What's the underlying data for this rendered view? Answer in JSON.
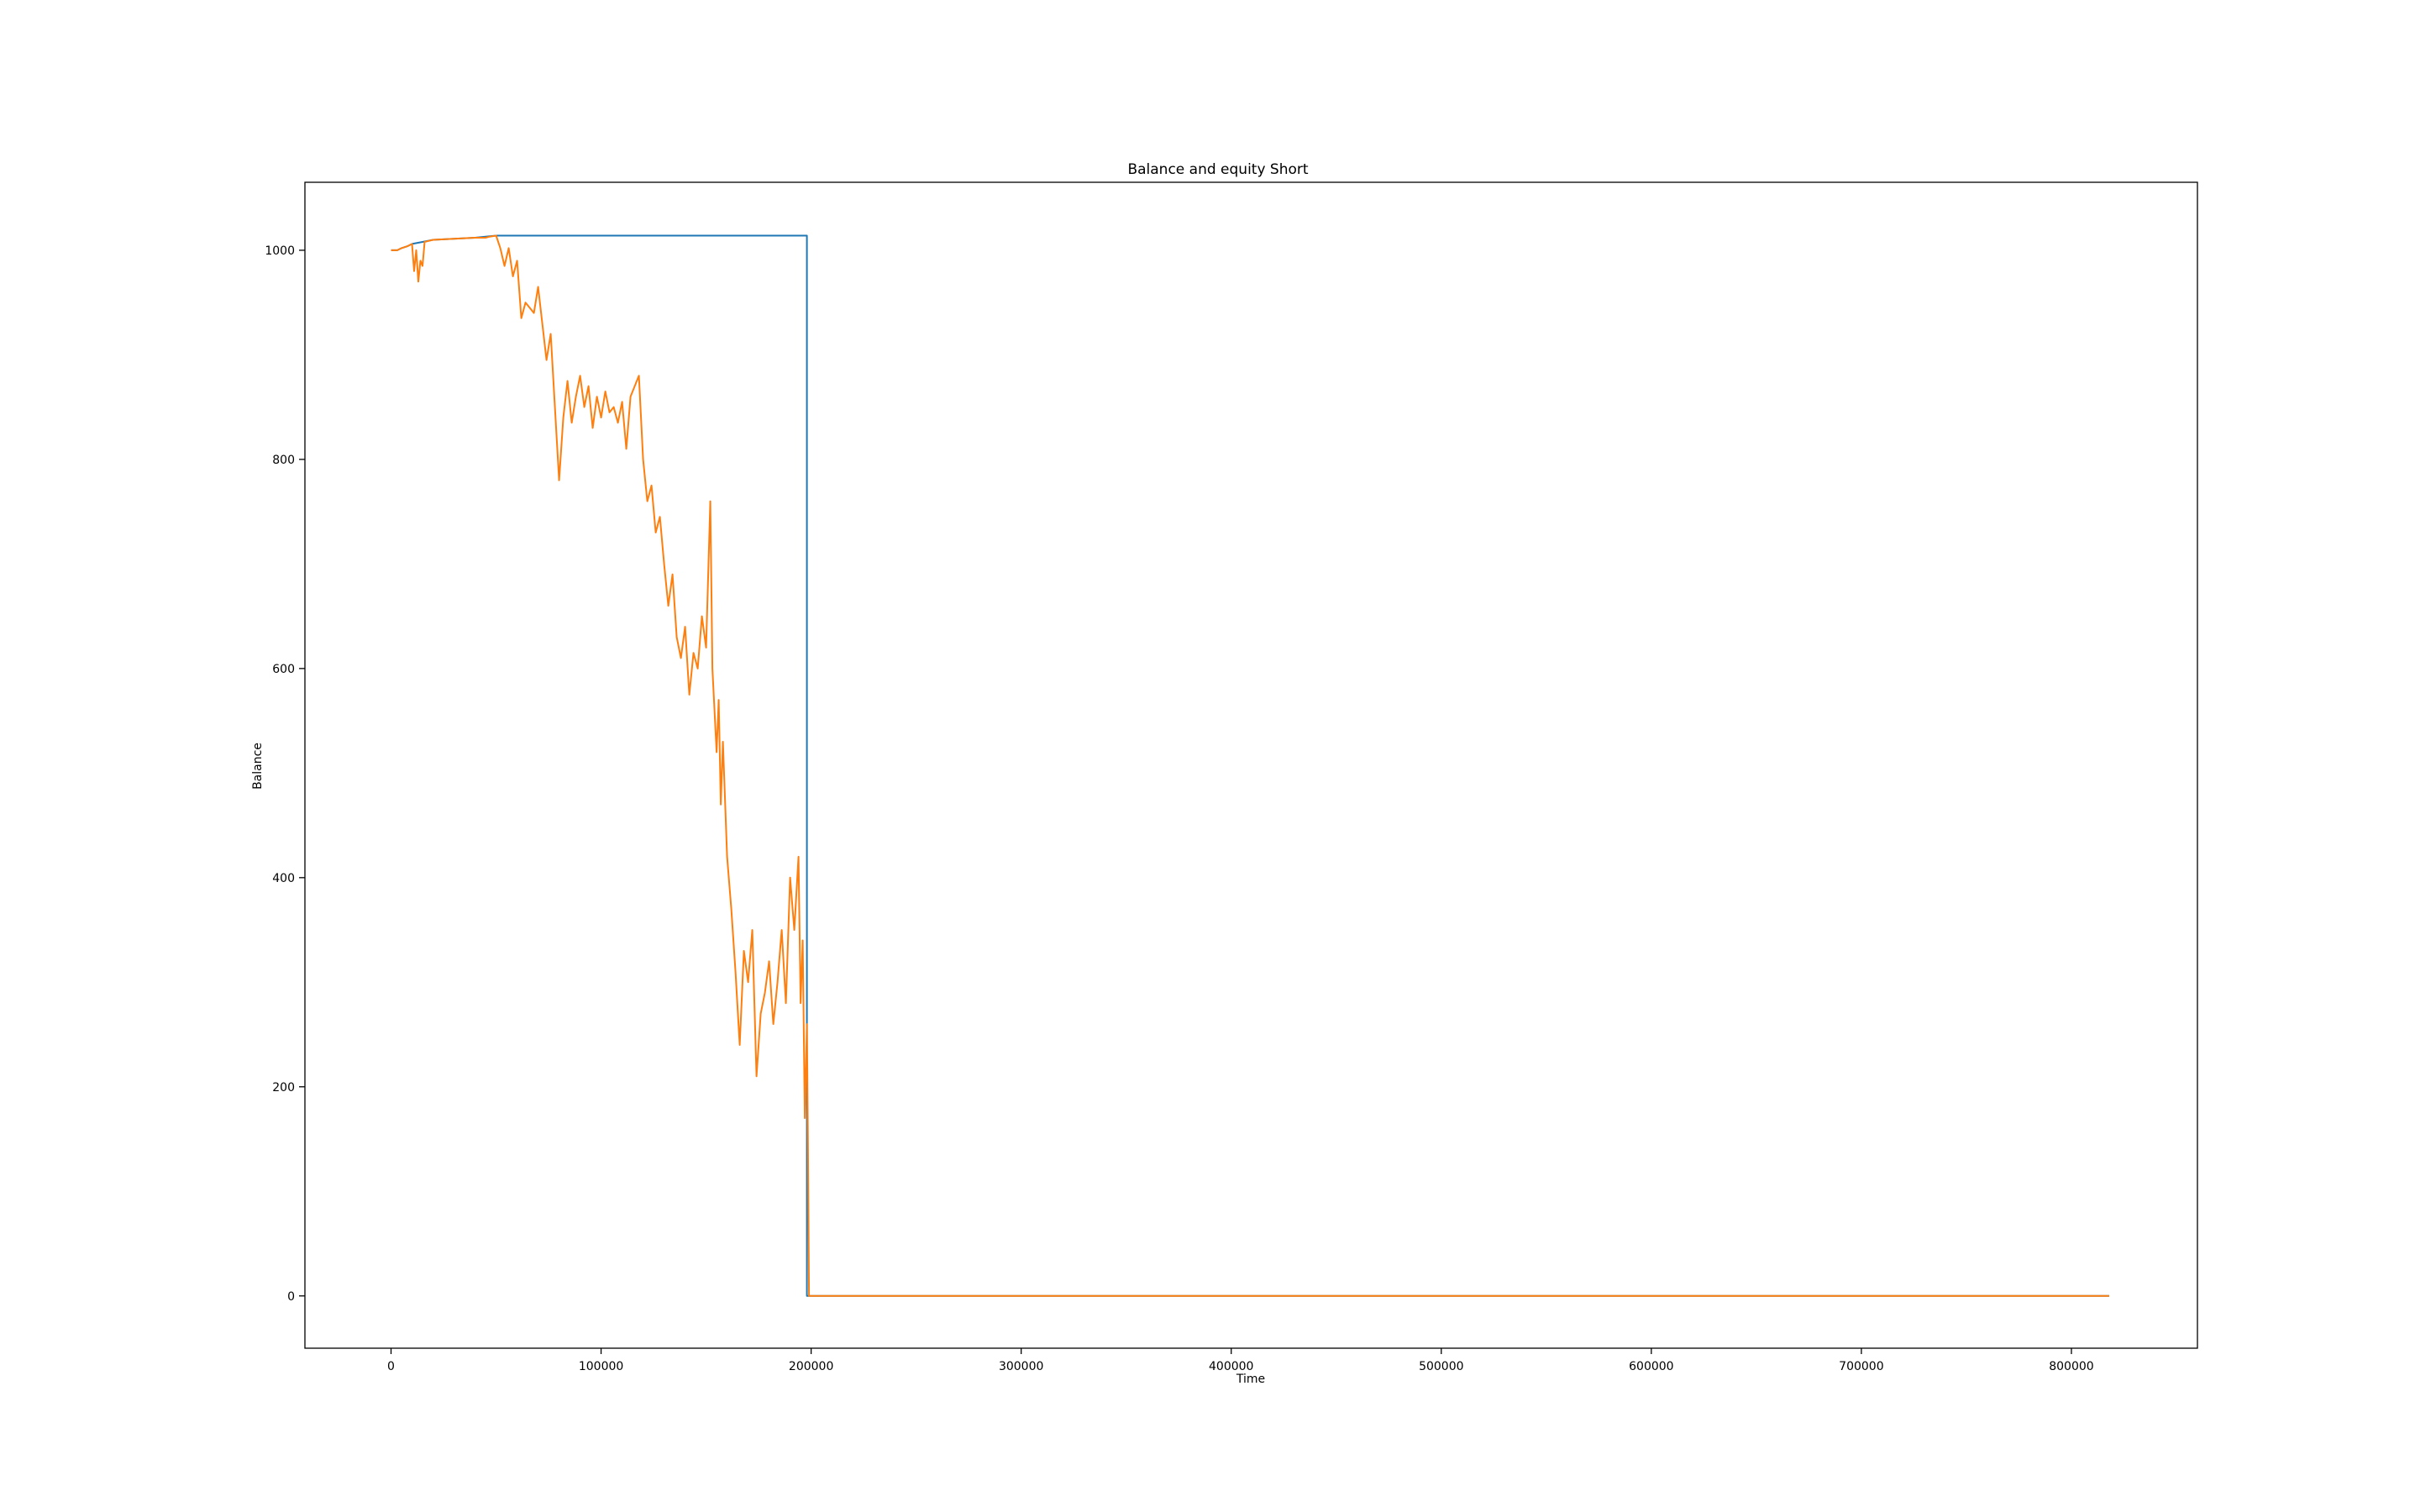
{
  "chart_data": {
    "type": "line",
    "title": "Balance and equity Short",
    "xlabel": "Time",
    "ylabel": "Balance",
    "xlim": [
      -41000,
      860000
    ],
    "ylim": [
      -50,
      1065
    ],
    "grid": false,
    "legend": "none",
    "xticks": [
      0,
      100000,
      200000,
      300000,
      400000,
      500000,
      600000,
      700000,
      800000
    ],
    "xtick_labels": [
      "0",
      "100000",
      "200000",
      "300000",
      "400000",
      "500000",
      "600000",
      "700000",
      "800000"
    ],
    "yticks": [
      0,
      200,
      400,
      600,
      800,
      1000
    ],
    "ytick_labels": [
      "0",
      "200",
      "400",
      "600",
      "800",
      "1000"
    ],
    "series": [
      {
        "color": "#1f77b4",
        "x": [
          0,
          3000,
          5000,
          8000,
          10000,
          15000,
          20000,
          30000,
          40000,
          45000,
          50000,
          100000,
          150000,
          198000,
          198000,
          200000,
          300000,
          400000,
          500000,
          600000,
          700000,
          818000
        ],
        "y": [
          1000,
          1000,
          1002,
          1004,
          1006,
          1008,
          1010,
          1011,
          1012,
          1013,
          1014,
          1014,
          1014,
          1014,
          0,
          0,
          0,
          0,
          0,
          0,
          0,
          0
        ]
      },
      {
        "color": "#ff7f0e",
        "x": [
          0,
          3000,
          5000,
          8000,
          10000,
          11000,
          12000,
          13000,
          14000,
          15000,
          16000,
          20000,
          30000,
          40000,
          45000,
          47000,
          50000,
          52000,
          54000,
          56000,
          58000,
          60000,
          62000,
          64000,
          66000,
          68000,
          70000,
          72000,
          74000,
          76000,
          78000,
          80000,
          82000,
          84000,
          86000,
          88000,
          90000,
          92000,
          94000,
          96000,
          98000,
          100000,
          102000,
          104000,
          106000,
          108000,
          110000,
          112000,
          114000,
          116000,
          118000,
          120000,
          122000,
          124000,
          126000,
          128000,
          130000,
          132000,
          134000,
          136000,
          138000,
          140000,
          142000,
          144000,
          146000,
          148000,
          150000,
          152000,
          153000,
          154000,
          155000,
          156000,
          157000,
          158000,
          160000,
          162000,
          164000,
          166000,
          168000,
          170000,
          172000,
          174000,
          176000,
          178000,
          180000,
          182000,
          184000,
          186000,
          188000,
          190000,
          192000,
          194000,
          195000,
          196000,
          197000,
          198000,
          198500,
          199000,
          200000,
          300000,
          400000,
          500000,
          600000,
          700000,
          818000
        ],
        "y": [
          1000,
          1000,
          1002,
          1004,
          1006,
          980,
          1000,
          970,
          990,
          985,
          1008,
          1010,
          1011,
          1012,
          1012,
          1013,
          1014,
          1002,
          985,
          1002,
          975,
          990,
          935,
          950,
          945,
          940,
          965,
          930,
          895,
          920,
          850,
          780,
          840,
          875,
          835,
          860,
          880,
          850,
          870,
          830,
          860,
          840,
          865,
          845,
          850,
          835,
          855,
          810,
          860,
          870,
          880,
          800,
          760,
          775,
          730,
          745,
          700,
          660,
          690,
          630,
          610,
          640,
          575,
          615,
          600,
          650,
          620,
          760,
          600,
          560,
          520,
          570,
          470,
          530,
          420,
          370,
          310,
          240,
          330,
          300,
          350,
          210,
          270,
          290,
          320,
          260,
          300,
          350,
          280,
          400,
          350,
          420,
          280,
          340,
          170,
          260,
          140,
          0,
          0,
          0,
          0,
          0,
          0,
          0,
          0
        ]
      }
    ]
  }
}
